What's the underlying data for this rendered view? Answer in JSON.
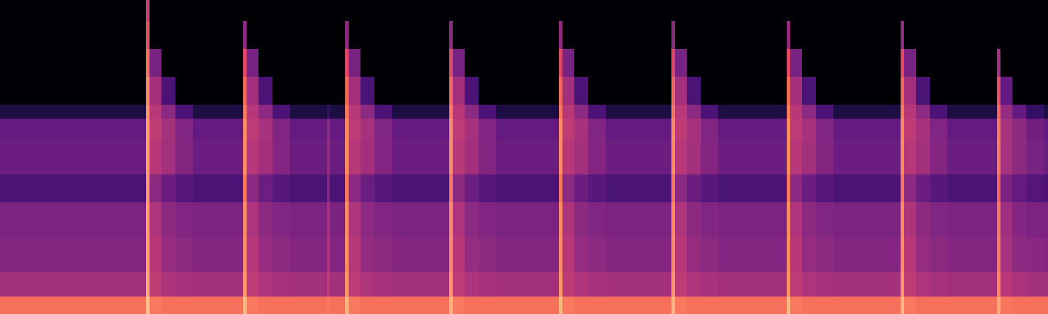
{
  "chart_data": {
    "type": "heatmap",
    "x": [
      0,
      209,
      214,
      231,
      251,
      276,
      348,
      353,
      370,
      390,
      415,
      468,
      472,
      494,
      499,
      516,
      536,
      561,
      643,
      648,
      665,
      685,
      710,
      800,
      805,
      822,
      842,
      867,
      961,
      966,
      983,
      1003,
      1028,
      1126,
      1131,
      1148,
      1168,
      1193,
      1289,
      1294,
      1311,
      1331,
      1356,
      1427,
      1432,
      1449,
      1469,
      1494,
      1500
    ],
    "y": [
      0,
      25,
      60,
      110,
      160,
      200,
      250,
      280,
      300,
      340,
      380,
      420,
      450
    ],
    "z": [
      [
        70,
        45,
        38,
        36,
        24,
        32,
        30,
        12,
        0,
        0,
        0,
        0
      ],
      [
        88,
        82,
        80,
        80,
        78,
        80,
        80,
        78,
        75,
        70,
        62,
        55
      ],
      [
        72,
        52,
        50,
        48,
        40,
        50,
        52,
        50,
        45,
        35,
        0,
        0
      ],
      [
        70,
        48,
        42,
        40,
        32,
        45,
        46,
        40,
        24,
        0,
        0,
        0
      ],
      [
        70,
        46,
        40,
        37,
        27,
        38,
        37,
        24,
        0,
        0,
        0,
        0
      ],
      [
        70,
        45,
        38,
        36,
        24,
        32,
        30,
        12,
        0,
        0,
        0,
        0
      ],
      [
        85,
        78,
        76,
        76,
        72,
        76,
        76,
        72,
        68,
        60,
        40,
        0
      ],
      [
        72,
        52,
        50,
        48,
        40,
        50,
        52,
        50,
        45,
        35,
        0,
        0
      ],
      [
        70,
        48,
        42,
        40,
        32,
        45,
        46,
        40,
        24,
        0,
        0,
        0
      ],
      [
        70,
        46,
        40,
        37,
        27,
        38,
        37,
        24,
        0,
        0,
        0,
        0
      ],
      [
        70,
        45,
        38,
        36,
        24,
        32,
        30,
        12,
        0,
        0,
        0,
        0
      ],
      [
        72,
        52,
        48,
        46,
        38,
        42,
        40,
        18,
        0,
        0,
        0,
        0
      ],
      [
        70,
        45,
        38,
        36,
        24,
        32,
        30,
        12,
        0,
        0,
        0,
        0
      ],
      [
        85,
        78,
        76,
        76,
        72,
        76,
        76,
        72,
        68,
        60,
        40,
        0
      ],
      [
        72,
        52,
        50,
        48,
        40,
        50,
        52,
        50,
        45,
        35,
        0,
        0
      ],
      [
        70,
        48,
        42,
        40,
        32,
        45,
        46,
        40,
        24,
        0,
        0,
        0
      ],
      [
        70,
        46,
        40,
        37,
        27,
        38,
        37,
        24,
        0,
        0,
        0,
        0
      ],
      [
        70,
        45,
        38,
        36,
        24,
        32,
        30,
        12,
        0,
        0,
        0,
        0
      ],
      [
        85,
        78,
        76,
        76,
        72,
        76,
        76,
        72,
        68,
        60,
        40,
        0
      ],
      [
        72,
        52,
        50,
        48,
        40,
        50,
        52,
        50,
        45,
        35,
        0,
        0
      ],
      [
        70,
        48,
        42,
        40,
        32,
        45,
        46,
        40,
        24,
        0,
        0,
        0
      ],
      [
        70,
        46,
        40,
        37,
        27,
        38,
        37,
        24,
        0,
        0,
        0,
        0
      ],
      [
        70,
        45,
        38,
        36,
        24,
        32,
        30,
        12,
        0,
        0,
        0,
        0
      ],
      [
        85,
        78,
        76,
        76,
        72,
        76,
        76,
        72,
        68,
        60,
        40,
        0
      ],
      [
        72,
        52,
        50,
        48,
        40,
        50,
        52,
        50,
        45,
        35,
        0,
        0
      ],
      [
        70,
        48,
        42,
        40,
        32,
        45,
        46,
        40,
        24,
        0,
        0,
        0
      ],
      [
        70,
        46,
        40,
        37,
        27,
        38,
        37,
        24,
        0,
        0,
        0,
        0
      ],
      [
        70,
        45,
        38,
        36,
        24,
        32,
        30,
        12,
        0,
        0,
        0,
        0
      ],
      [
        85,
        78,
        76,
        76,
        72,
        76,
        76,
        72,
        68,
        60,
        40,
        0
      ],
      [
        72,
        52,
        50,
        48,
        40,
        50,
        52,
        50,
        45,
        35,
        0,
        0
      ],
      [
        70,
        48,
        42,
        40,
        32,
        45,
        46,
        40,
        24,
        0,
        0,
        0
      ],
      [
        70,
        46,
        40,
        37,
        27,
        38,
        37,
        24,
        0,
        0,
        0,
        0
      ],
      [
        70,
        45,
        38,
        36,
        24,
        32,
        30,
        12,
        0,
        0,
        0,
        0
      ],
      [
        85,
        78,
        76,
        76,
        72,
        76,
        76,
        72,
        68,
        60,
        40,
        0
      ],
      [
        72,
        52,
        50,
        48,
        40,
        50,
        52,
        50,
        45,
        35,
        0,
        0
      ],
      [
        70,
        48,
        42,
        40,
        32,
        45,
        46,
        40,
        24,
        0,
        0,
        0
      ],
      [
        70,
        46,
        40,
        37,
        27,
        38,
        37,
        24,
        0,
        0,
        0,
        0
      ],
      [
        70,
        45,
        38,
        36,
        24,
        32,
        30,
        12,
        0,
        0,
        0,
        0
      ],
      [
        85,
        78,
        76,
        76,
        72,
        76,
        76,
        72,
        68,
        60,
        40,
        0
      ],
      [
        72,
        52,
        50,
        48,
        40,
        50,
        52,
        50,
        45,
        35,
        0,
        0
      ],
      [
        70,
        48,
        42,
        40,
        32,
        45,
        46,
        40,
        24,
        0,
        0,
        0
      ],
      [
        70,
        46,
        40,
        37,
        27,
        38,
        37,
        24,
        0,
        0,
        0,
        0
      ],
      [
        70,
        45,
        38,
        36,
        24,
        32,
        30,
        12,
        0,
        0,
        0,
        0
      ],
      [
        82,
        74,
        72,
        72,
        68,
        72,
        72,
        68,
        62,
        45,
        0,
        0
      ],
      [
        71,
        50,
        46,
        44,
        36,
        46,
        46,
        42,
        30,
        0,
        0,
        0
      ],
      [
        70,
        47,
        40,
        38,
        30,
        40,
        40,
        30,
        0,
        0,
        0,
        0
      ],
      [
        70,
        45,
        39,
        36,
        26,
        35,
        33,
        18,
        0,
        0,
        0,
        0
      ],
      [
        70,
        45,
        38,
        36,
        24,
        32,
        30,
        12,
        0,
        0,
        0,
        0
      ]
    ],
    "xlim": [
      0,
      1500
    ],
    "ylim": [
      0,
      450
    ],
    "zlim": [
      0,
      100
    ],
    "tick_labels": false
  }
}
